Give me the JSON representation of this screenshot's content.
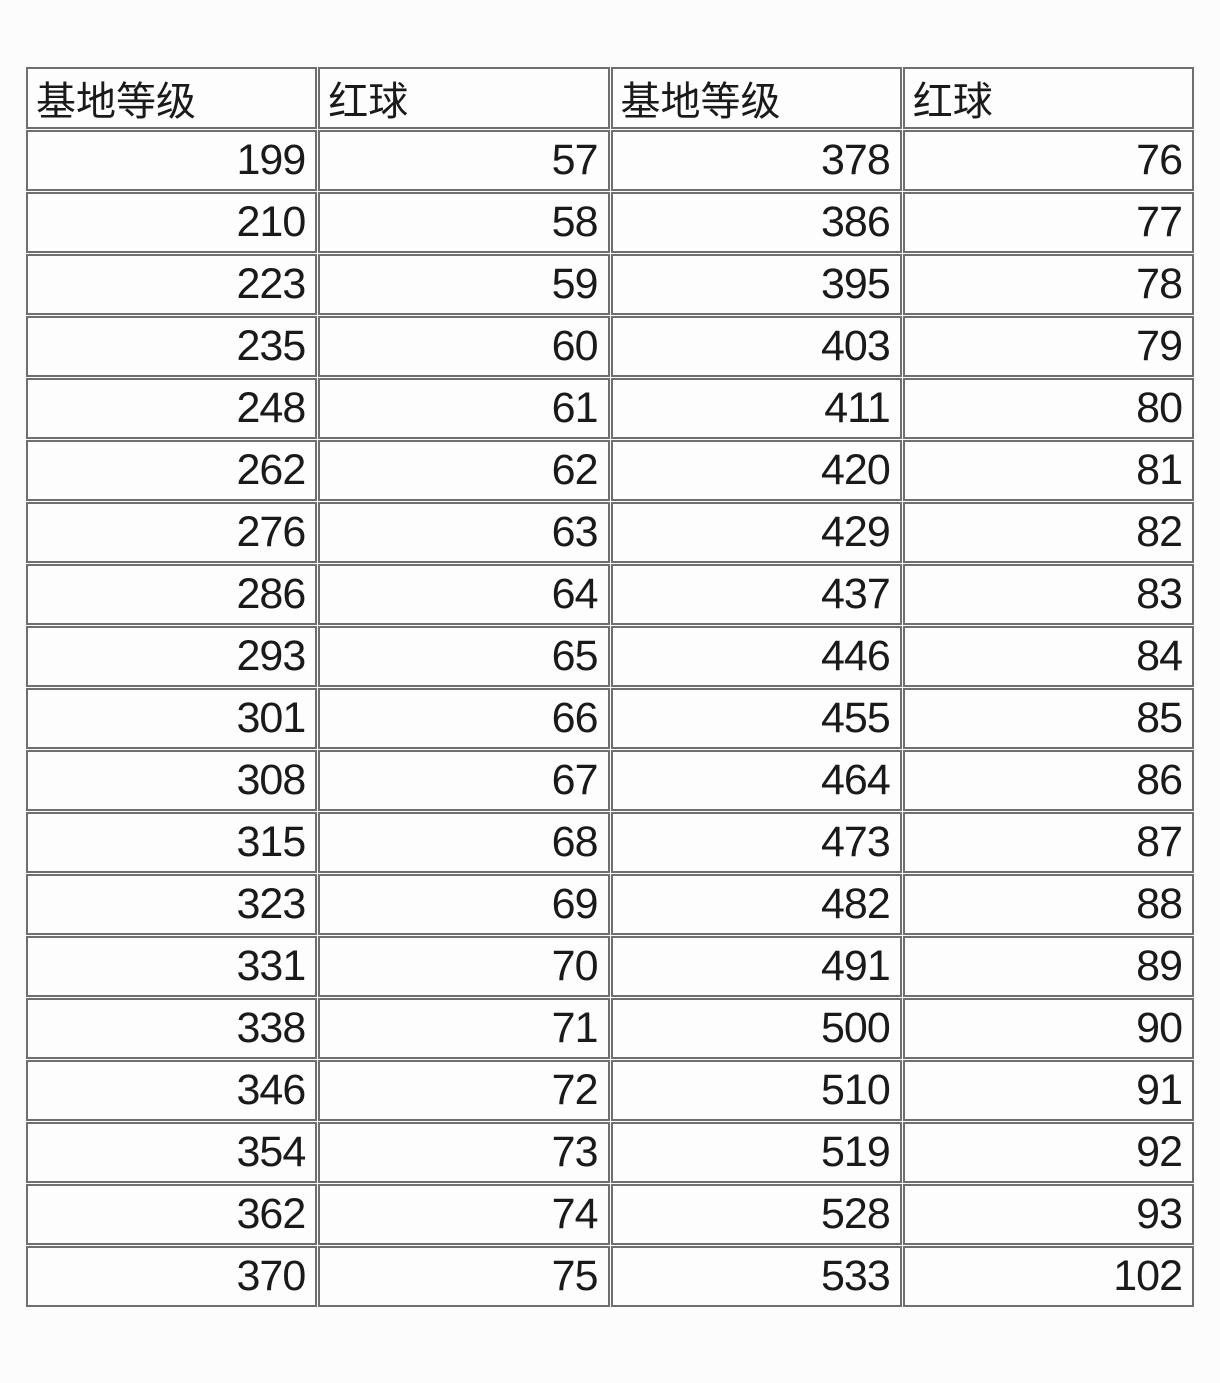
{
  "colors": {
    "border": "#6f6f6f",
    "text": "#1a1a1a",
    "background": "#fcfcfc",
    "cell_background": "#fdfdfd"
  },
  "chart_data": {
    "type": "table",
    "columns": [
      "基地等级",
      "红球",
      "基地等级",
      "红球"
    ],
    "rows": [
      [
        199,
        57,
        378,
        76
      ],
      [
        210,
        58,
        386,
        77
      ],
      [
        223,
        59,
        395,
        78
      ],
      [
        235,
        60,
        403,
        79
      ],
      [
        248,
        61,
        411,
        80
      ],
      [
        262,
        62,
        420,
        81
      ],
      [
        276,
        63,
        429,
        82
      ],
      [
        286,
        64,
        437,
        83
      ],
      [
        293,
        65,
        446,
        84
      ],
      [
        301,
        66,
        455,
        85
      ],
      [
        308,
        67,
        464,
        86
      ],
      [
        315,
        68,
        473,
        87
      ],
      [
        323,
        69,
        482,
        88
      ],
      [
        331,
        70,
        491,
        89
      ],
      [
        338,
        71,
        500,
        90
      ],
      [
        346,
        72,
        510,
        91
      ],
      [
        354,
        73,
        519,
        92
      ],
      [
        362,
        74,
        528,
        93
      ],
      [
        370,
        75,
        533,
        102
      ]
    ]
  }
}
